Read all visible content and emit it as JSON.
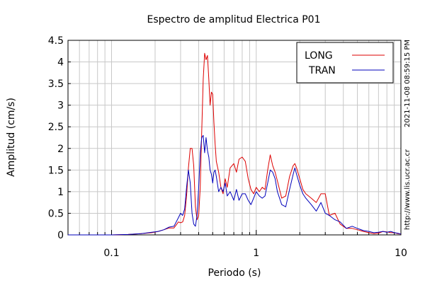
{
  "chart_data": {
    "type": "line",
    "title": "Espectro de amplitud Electrica P01",
    "xlabel": "Periodo (s)",
    "ylabel": "Amplitud (cm/s)",
    "x_scale": "log",
    "xlim": [
      0.05,
      10
    ],
    "ylim": [
      0,
      4.5
    ],
    "grid": true,
    "legend_position": "top-right",
    "x_ticks": [
      {
        "value": 0.1,
        "label": "0.1"
      },
      {
        "value": 1,
        "label": "1"
      },
      {
        "value": 10,
        "label": "10"
      }
    ],
    "y_ticks": [
      {
        "value": 0,
        "label": "0"
      },
      {
        "value": 0.5,
        "label": "0.5"
      },
      {
        "value": 1,
        "label": "1"
      },
      {
        "value": 1.5,
        "label": "1.5"
      },
      {
        "value": 2,
        "label": "2"
      },
      {
        "value": 2.5,
        "label": "2.5"
      },
      {
        "value": 3,
        "label": "3"
      },
      {
        "value": 3.5,
        "label": "3.5"
      },
      {
        "value": 4,
        "label": "4"
      },
      {
        "value": 4.5,
        "label": "4.5"
      }
    ],
    "series": [
      {
        "name": "LONG",
        "color": "#dd0000",
        "x": [
          0.05,
          0.08,
          0.1,
          0.13,
          0.16,
          0.19,
          0.21,
          0.23,
          0.25,
          0.27,
          0.29,
          0.3,
          0.31,
          0.32,
          0.33,
          0.34,
          0.35,
          0.36,
          0.37,
          0.38,
          0.39,
          0.4,
          0.41,
          0.42,
          0.43,
          0.44,
          0.45,
          0.46,
          0.47,
          0.48,
          0.49,
          0.5,
          0.51,
          0.52,
          0.53,
          0.55,
          0.57,
          0.59,
          0.61,
          0.63,
          0.66,
          0.7,
          0.73,
          0.76,
          0.8,
          0.84,
          0.88,
          0.92,
          0.96,
          1.0,
          1.05,
          1.1,
          1.15,
          1.2,
          1.25,
          1.3,
          1.35,
          1.4,
          1.5,
          1.6,
          1.7,
          1.8,
          1.85,
          1.9,
          2.0,
          2.1,
          2.2,
          2.4,
          2.6,
          2.8,
          3.0,
          3.2,
          3.5,
          3.8,
          4.2,
          4.6,
          5.0,
          5.5,
          6.0,
          6.5,
          7.0,
          7.5,
          8.0,
          8.5,
          9.0,
          9.5,
          10.0
        ],
        "values": [
          0.0,
          0.0,
          0.0,
          0.01,
          0.03,
          0.05,
          0.08,
          0.12,
          0.16,
          0.16,
          0.3,
          0.28,
          0.3,
          0.45,
          0.9,
          1.55,
          2.0,
          2.0,
          1.6,
          0.65,
          0.35,
          0.45,
          1.1,
          2.4,
          3.6,
          4.2,
          4.05,
          4.15,
          3.6,
          3.0,
          3.3,
          3.25,
          2.6,
          2.1,
          1.7,
          1.45,
          1.1,
          0.95,
          1.3,
          1.1,
          1.55,
          1.65,
          1.45,
          1.75,
          1.8,
          1.7,
          1.3,
          1.05,
          0.95,
          1.1,
          1.0,
          1.1,
          1.05,
          1.5,
          1.85,
          1.6,
          1.45,
          1.25,
          0.85,
          0.9,
          1.35,
          1.6,
          1.65,
          1.55,
          1.3,
          1.05,
          0.95,
          0.85,
          0.75,
          0.95,
          0.95,
          0.45,
          0.5,
          0.25,
          0.15,
          0.15,
          0.12,
          0.08,
          0.05,
          0.03,
          0.04,
          0.08,
          0.07,
          0.05,
          0.05,
          0.03,
          0.02
        ]
      },
      {
        "name": "TRAN",
        "color": "#0000bb",
        "x": [
          0.05,
          0.08,
          0.1,
          0.13,
          0.16,
          0.19,
          0.21,
          0.23,
          0.25,
          0.27,
          0.29,
          0.3,
          0.31,
          0.32,
          0.33,
          0.34,
          0.35,
          0.36,
          0.37,
          0.38,
          0.39,
          0.4,
          0.41,
          0.42,
          0.43,
          0.44,
          0.45,
          0.46,
          0.47,
          0.48,
          0.49,
          0.5,
          0.51,
          0.52,
          0.53,
          0.55,
          0.57,
          0.59,
          0.61,
          0.63,
          0.66,
          0.7,
          0.73,
          0.76,
          0.8,
          0.84,
          0.88,
          0.92,
          0.96,
          1.0,
          1.05,
          1.1,
          1.15,
          1.2,
          1.25,
          1.3,
          1.35,
          1.4,
          1.5,
          1.6,
          1.7,
          1.8,
          1.85,
          1.9,
          2.0,
          2.1,
          2.2,
          2.4,
          2.6,
          2.8,
          3.0,
          3.2,
          3.5,
          3.8,
          4.2,
          4.6,
          5.0,
          5.5,
          6.0,
          6.5,
          7.0,
          7.5,
          8.0,
          8.5,
          9.0,
          9.5,
          10.0
        ],
        "values": [
          0.0,
          0.0,
          0.0,
          0.01,
          0.03,
          0.06,
          0.08,
          0.12,
          0.18,
          0.2,
          0.4,
          0.5,
          0.45,
          0.6,
          1.1,
          1.5,
          1.2,
          0.5,
          0.25,
          0.2,
          0.45,
          1.1,
          1.9,
          2.25,
          2.3,
          1.9,
          2.25,
          1.95,
          1.8,
          1.5,
          1.4,
          1.2,
          1.45,
          1.5,
          1.35,
          1.0,
          1.1,
          1.0,
          1.2,
          0.9,
          1.0,
          0.8,
          1.05,
          0.8,
          0.95,
          0.95,
          0.8,
          0.7,
          0.85,
          1.0,
          0.9,
          0.85,
          0.9,
          1.2,
          1.5,
          1.45,
          1.3,
          1.0,
          0.7,
          0.65,
          1.05,
          1.4,
          1.55,
          1.4,
          1.15,
          0.95,
          0.85,
          0.7,
          0.55,
          0.75,
          0.5,
          0.45,
          0.35,
          0.3,
          0.15,
          0.2,
          0.15,
          0.1,
          0.08,
          0.05,
          0.06,
          0.08,
          0.06,
          0.08,
          0.05,
          0.04,
          0.02
        ]
      }
    ]
  },
  "side_labels": {
    "timestamp": "2021-11-08 08:59:15 PM",
    "url": "http://www.lis.ucr.ac.cr"
  }
}
